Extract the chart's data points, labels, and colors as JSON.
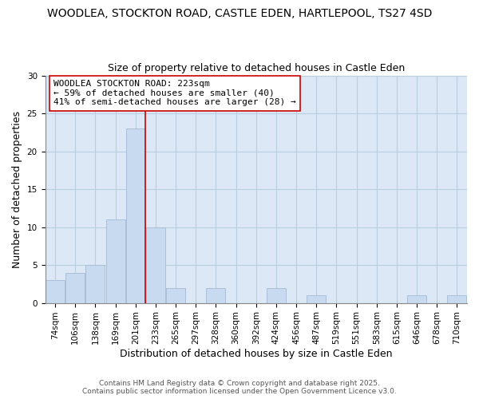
{
  "title1": "WOODLEA, STOCKTON ROAD, CASTLE EDEN, HARTLEPOOL, TS27 4SD",
  "title2": "Size of property relative to detached houses in Castle Eden",
  "xlabel": "Distribution of detached houses by size in Castle Eden",
  "ylabel": "Number of detached properties",
  "bar_color": "#c8daf0",
  "bar_edge_color": "#aabfd8",
  "categories": [
    "74sqm",
    "106sqm",
    "138sqm",
    "169sqm",
    "201sqm",
    "233sqm",
    "265sqm",
    "297sqm",
    "328sqm",
    "360sqm",
    "392sqm",
    "424sqm",
    "456sqm",
    "487sqm",
    "519sqm",
    "551sqm",
    "583sqm",
    "615sqm",
    "646sqm",
    "678sqm",
    "710sqm"
  ],
  "values": [
    3,
    4,
    5,
    11,
    23,
    10,
    2,
    0,
    2,
    0,
    0,
    2,
    0,
    1,
    0,
    0,
    0,
    0,
    1,
    0,
    1
  ],
  "ylim": [
    0,
    30
  ],
  "yticks": [
    0,
    5,
    10,
    15,
    20,
    25,
    30
  ],
  "vline_x_index": 4.5,
  "vline_color": "#cc0000",
  "annotation_title": "WOODLEA STOCKTON ROAD: 223sqm",
  "annotation_line1": "← 59% of detached houses are smaller (40)",
  "annotation_line2": "41% of semi-detached houses are larger (28) →",
  "annotation_box_facecolor": "#ffffff",
  "annotation_box_edgecolor": "#cc0000",
  "footer1": "Contains HM Land Registry data © Crown copyright and database right 2025.",
  "footer2": "Contains public sector information licensed under the Open Government Licence v3.0.",
  "background_color": "#ffffff",
  "plot_bg_color": "#dce8f5",
  "grid_color": "#b8cfe0",
  "title_fontsize": 10,
  "subtitle_fontsize": 9,
  "axis_label_fontsize": 9,
  "tick_fontsize": 7.5,
  "annotation_fontsize": 8,
  "footer_fontsize": 6.5
}
